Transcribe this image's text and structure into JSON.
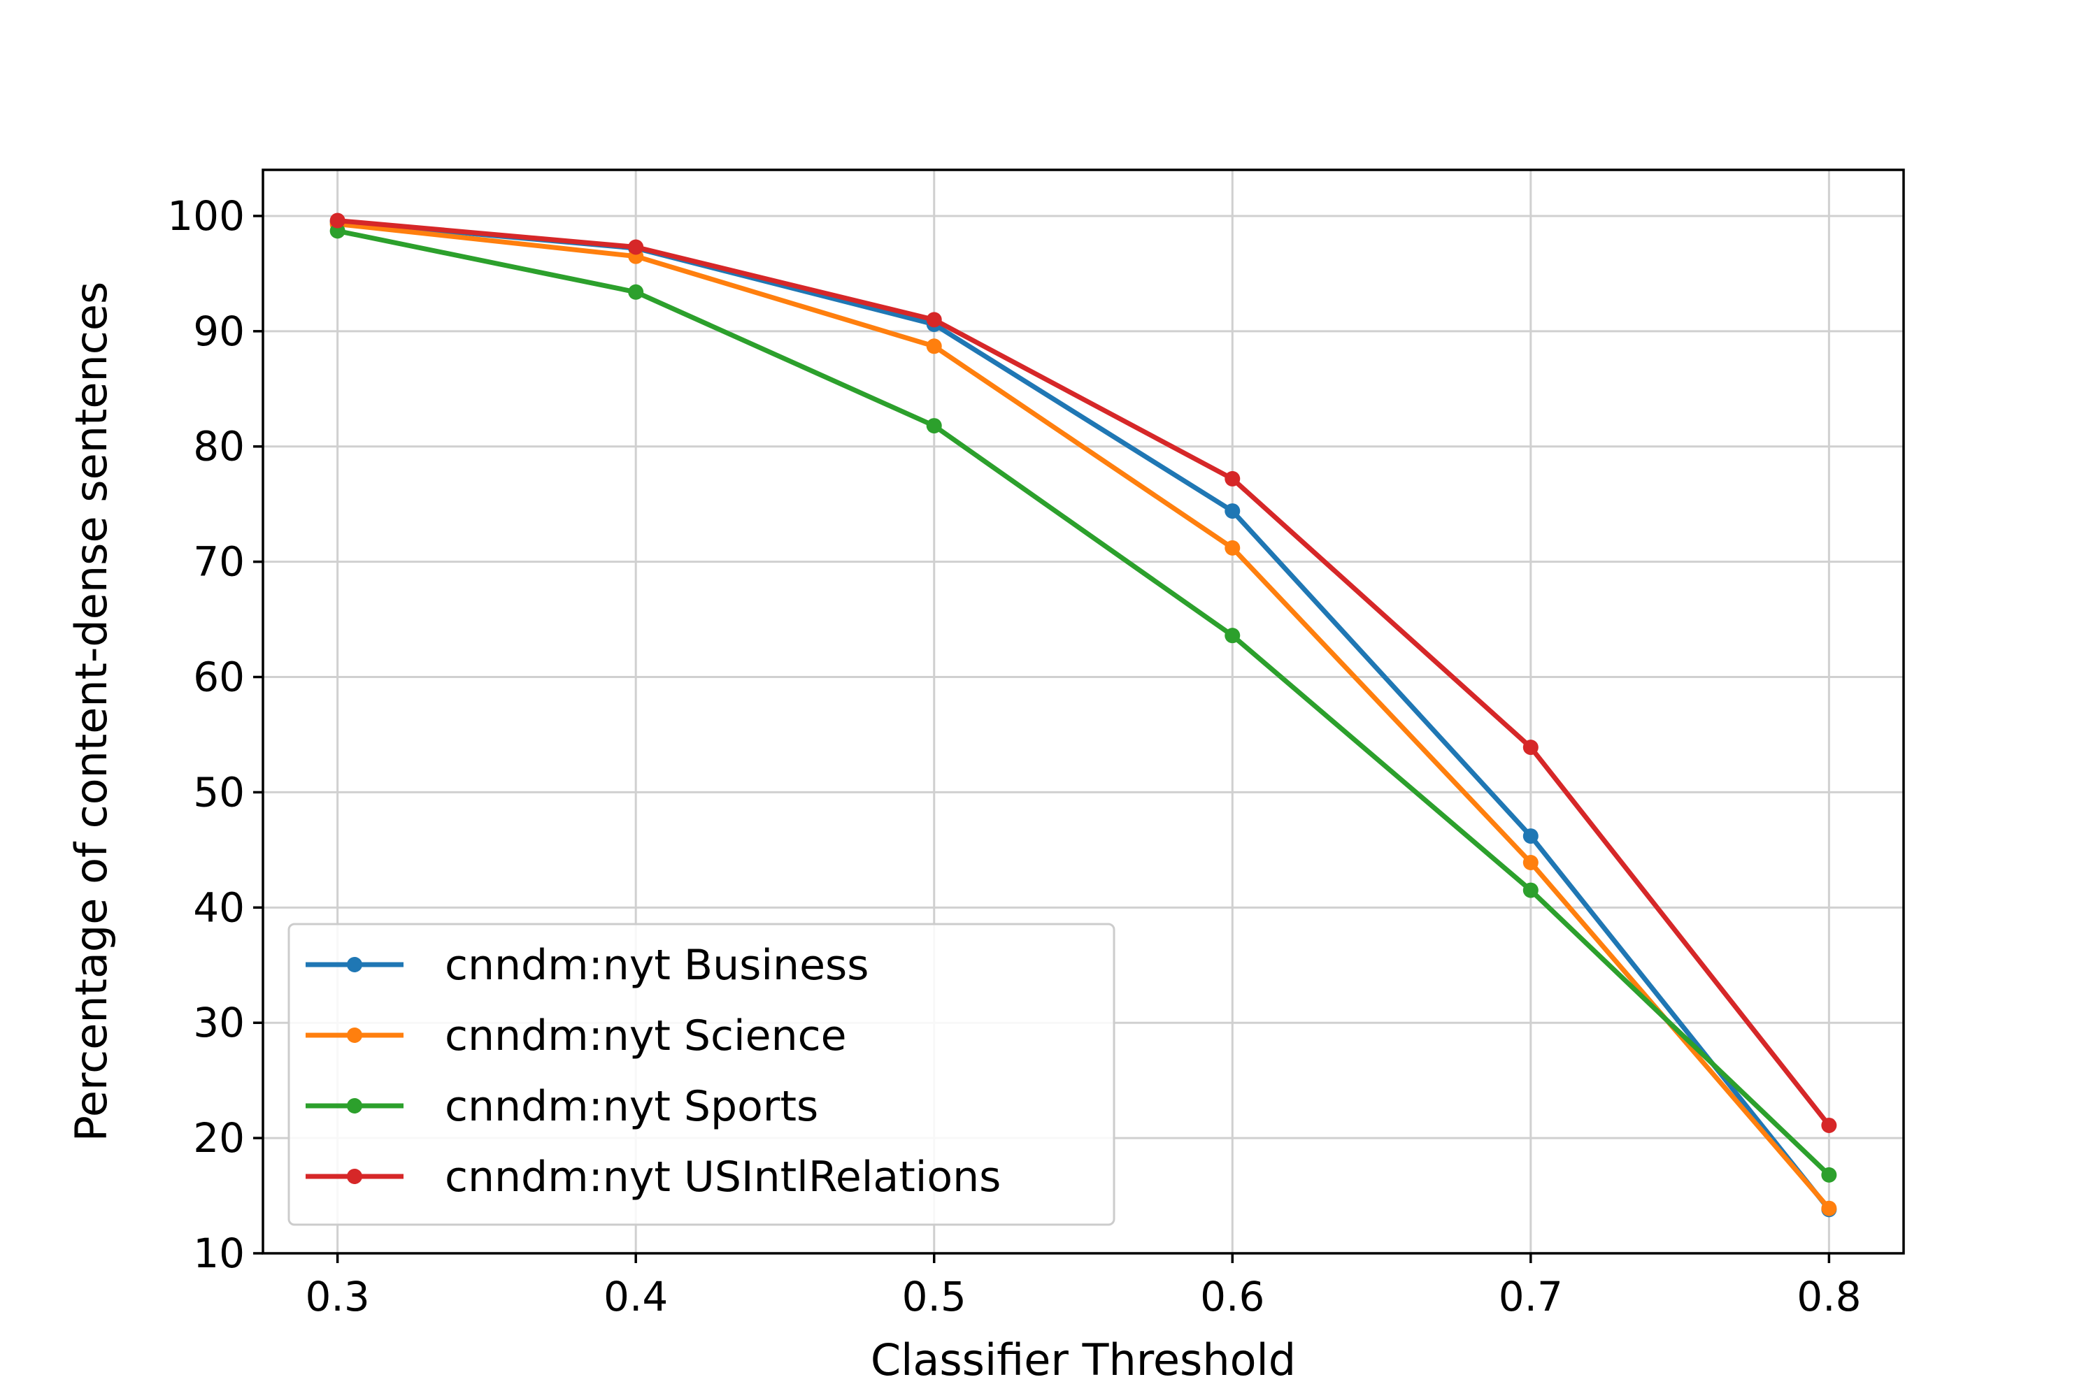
{
  "chart_data": {
    "type": "line",
    "xlabel": "Classifier Threshold",
    "ylabel": "Percentage of content-dense sentences",
    "x": [
      0.3,
      0.4,
      0.5,
      0.6,
      0.7,
      0.8
    ],
    "xticks": [
      "0.3",
      "0.4",
      "0.5",
      "0.6",
      "0.7",
      "0.8"
    ],
    "yticks": [
      "10",
      "20",
      "30",
      "40",
      "50",
      "60",
      "70",
      "80",
      "90",
      "100"
    ],
    "xlim": [
      0.275,
      0.825
    ],
    "ylim": [
      10,
      104
    ],
    "grid": true,
    "legend_position": "lower-left",
    "series": [
      {
        "name": "cnndm:nyt Business",
        "color": "#1f77b4",
        "values": [
          99.5,
          97.2,
          90.6,
          74.4,
          46.2,
          13.8
        ]
      },
      {
        "name": "cnndm:nyt Science",
        "color": "#ff7f0e",
        "values": [
          99.3,
          96.5,
          88.7,
          71.2,
          43.9,
          13.9
        ]
      },
      {
        "name": "cnndm:nyt Sports",
        "color": "#2ca02c",
        "values": [
          98.7,
          93.4,
          81.8,
          63.6,
          41.5,
          16.8
        ]
      },
      {
        "name": "cnndm:nyt USIntlRelations",
        "color": "#d62728",
        "values": [
          99.6,
          97.3,
          91.0,
          77.2,
          53.9,
          21.1
        ]
      }
    ]
  }
}
